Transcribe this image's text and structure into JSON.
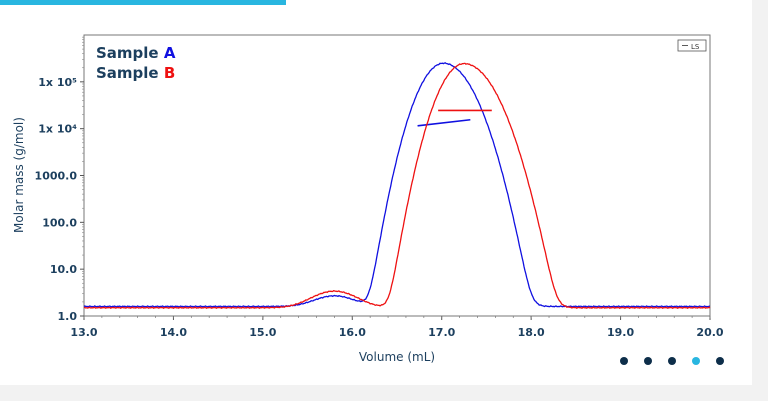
{
  "colors": {
    "accent": "#29b6e0",
    "axis_text": "#1c3f5e",
    "series_a": "#1010e0",
    "series_b": "#ee1111",
    "dot": "#0d2e4a"
  },
  "legend": {
    "line1_prefix": "Sample ",
    "line1_letter": "A",
    "line2_prefix": "Sample ",
    "line2_letter": "B",
    "box_label": "LS"
  },
  "pagination": {
    "count": 5,
    "active_index": 3
  },
  "chart_data": {
    "type": "line",
    "xlabel": "Volume (mL)",
    "ylabel": "Molar mass (g/mol)",
    "xlim": [
      13.0,
      20.0
    ],
    "ylim": [
      1.0,
      1000000
    ],
    "yscale": "log",
    "x_ticks": [
      "13.0",
      "14.0",
      "15.0",
      "16.0",
      "17.0",
      "18.0",
      "19.0",
      "20.0"
    ],
    "y_ticks": [
      {
        "value": 1,
        "label": "1.0"
      },
      {
        "value": 10,
        "label": "10.0"
      },
      {
        "value": 100,
        "label": "100.0"
      },
      {
        "value": 1000,
        "label": "1000.0"
      },
      {
        "value": 10000,
        "label": "1x 10⁴"
      },
      {
        "value": 100000,
        "label": "1x 10⁵"
      }
    ],
    "series": [
      {
        "name": "Sample A",
        "color": "#1010e0",
        "baseline": 1.6,
        "peaks": [
          {
            "center": 17.02,
            "height": 250000,
            "sigma_left": 0.17,
            "sigma_right": 0.2
          },
          {
            "center": 15.8,
            "height": 1.1,
            "sigma_left": 0.2,
            "sigma_right": 0.2
          }
        ],
        "mass_segment": {
          "x": [
            16.73,
            17.32
          ],
          "y": [
            11500,
            15500
          ]
        }
      },
      {
        "name": "Sample B",
        "color": "#ee1111",
        "baseline": 1.5,
        "peaks": [
          {
            "center": 17.25,
            "height": 245000,
            "sigma_left": 0.17,
            "sigma_right": 0.21
          },
          {
            "center": 15.8,
            "height": 1.9,
            "sigma_left": 0.22,
            "sigma_right": 0.22
          }
        ],
        "mass_segment": {
          "x": [
            16.96,
            17.56
          ],
          "y": [
            24500,
            24500
          ]
        }
      }
    ]
  }
}
